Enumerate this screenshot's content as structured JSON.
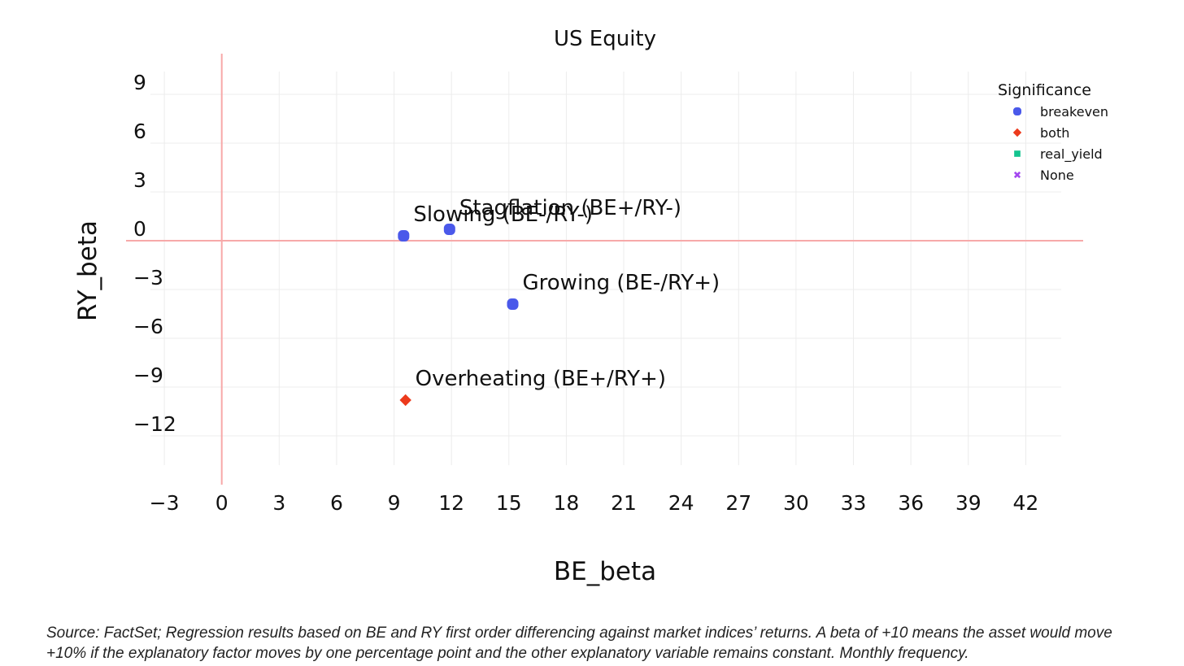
{
  "colors": {
    "breakeven": "#4a59ea",
    "both": "#ec3a1c",
    "real_yield": "#13c48f",
    "none": "#a447f0",
    "zero_line": "#f7a9a9",
    "grid": "#ececec"
  },
  "chart_data": {
    "type": "scatter",
    "title": "US Equity",
    "xlabel": "BE_beta",
    "ylabel": "RY_beta",
    "xlim": [
      -5,
      45
    ],
    "ylim": [
      -15,
      11.5
    ],
    "x_ticks": [
      -3,
      0,
      3,
      6,
      9,
      12,
      15,
      18,
      21,
      24,
      27,
      30,
      33,
      36,
      39,
      42
    ],
    "x_tick_labels": [
      "−3",
      "0",
      "3",
      "6",
      "9",
      "12",
      "15",
      "18",
      "21",
      "24",
      "27",
      "30",
      "33",
      "36",
      "39",
      "42"
    ],
    "y_ticks": [
      9,
      6,
      3,
      0,
      -3,
      -6,
      -9,
      -12
    ],
    "y_tick_labels": [
      "9",
      "6",
      "3",
      "0",
      "−3",
      "−6",
      "−9",
      "−12"
    ],
    "grid": true,
    "zero_lines": true,
    "legend": {
      "title": "Significance",
      "position": "top-right",
      "entries": [
        {
          "name": "breakeven",
          "symbol": "circle",
          "color_key": "breakeven"
        },
        {
          "name": "both",
          "symbol": "diamond",
          "color_key": "both"
        },
        {
          "name": "real_yield",
          "symbol": "square",
          "color_key": "real_yield"
        },
        {
          "name": "None",
          "symbol": "x",
          "color_key": "none"
        }
      ]
    },
    "points": [
      {
        "label": "Slowing (BE-/RY-)",
        "x": 9.5,
        "y": 0.3,
        "significance": "breakeven"
      },
      {
        "label": "Stagflation (BE+/RY-)",
        "x": 11.9,
        "y": 0.7,
        "significance": "breakeven"
      },
      {
        "label": "Growing (BE-/RY+)",
        "x": 15.2,
        "y": -3.9,
        "significance": "breakeven"
      },
      {
        "label": "Overheating (BE+/RY+)",
        "x": 9.6,
        "y": -9.8,
        "significance": "both"
      }
    ]
  },
  "caption": "Source: FactSet; Regression results based on BE and RY first order differencing against market indices’ returns. A beta of +10 means the asset would move +10% if the explanatory factor moves by one percentage point and the other explanatory variable remains constant.  Monthly frequency."
}
